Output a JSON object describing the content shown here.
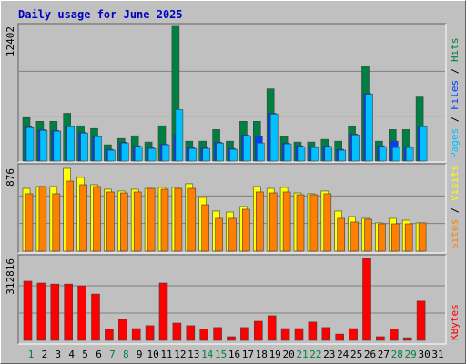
{
  "title": "Daily usage for June 2025",
  "chart_data": [
    {
      "type": "bar",
      "ylim": [
        0,
        12402
      ],
      "yticks": [
        12402
      ],
      "series": [
        {
          "name": "Hits",
          "color": "#008040",
          "values": [
            4000,
            3660,
            3660,
            4400,
            3250,
            3000,
            1500,
            2080,
            2330,
            1750,
            3250,
            12402,
            1830,
            1830,
            2900,
            1830,
            3660,
            3660,
            6650,
            2250,
            1750,
            1750,
            2000,
            1830,
            3160,
            8740,
            1830,
            2900,
            2900,
            5900,
            null
          ]
        },
        {
          "name": "Files",
          "color": "#0040ff",
          "values": [
            3150,
            2900,
            2820,
            3240,
            2650,
            2330,
            1080,
            1740,
            1410,
            1240,
            1580,
            2410,
            1240,
            1240,
            1740,
            1160,
            2410,
            2250,
            4410,
            1660,
            1410,
            1330,
            1410,
            1080,
            2490,
            6240,
            1410,
            1830,
            1330,
            3240,
            null
          ]
        },
        {
          "name": "Pages",
          "color": "#00c0ff",
          "values": [
            3080,
            2830,
            2750,
            3160,
            2580,
            2250,
            1000,
            1660,
            1330,
            1160,
            1500,
            4740,
            1160,
            1160,
            1660,
            1080,
            2330,
            1660,
            4330,
            1580,
            1330,
            1250,
            1330,
            1000,
            2410,
            6160,
            1330,
            1250,
            1250,
            3160,
            null
          ]
        }
      ]
    },
    {
      "type": "bar",
      "ylim": [
        0,
        876
      ],
      "yticks": [
        876
      ],
      "series": [
        {
          "name": "Visits",
          "color": "#ffff00",
          "values": [
            664,
            684,
            684,
            876,
            780,
            703,
            655,
            636,
            655,
            664,
            674,
            674,
            713,
            568,
            424,
            414,
            472,
            684,
            664,
            674,
            616,
            607,
            636,
            424,
            366,
            347,
            299,
            347,
            327,
            299,
            null
          ]
        },
        {
          "name": "Sites",
          "color": "#ff8000",
          "values": [
            607,
            684,
            607,
            741,
            703,
            684,
            626,
            616,
            626,
            664,
            655,
            664,
            664,
            491,
            347,
            347,
            443,
            626,
            616,
            626,
            597,
            597,
            607,
            347,
            308,
            337,
            289,
            289,
            289,
            299,
            null
          ]
        }
      ]
    },
    {
      "type": "bar",
      "ylim": [
        0,
        312816
      ],
      "yticks": [
        312816
      ],
      "categories": [
        "1",
        "2",
        "3",
        "4",
        "5",
        "6",
        "7",
        "8",
        "9",
        "10",
        "11",
        "12",
        "13",
        "14",
        "15",
        "16",
        "17",
        "18",
        "19",
        "20",
        "21",
        "22",
        "23",
        "24",
        "25",
        "26",
        "27",
        "28",
        "29",
        "30",
        "31"
      ],
      "category_colors": [
        "#008040",
        "#000000",
        "#000000",
        "#000000",
        "#000000",
        "#000000",
        "#008040",
        "#008040",
        "#000000",
        "#000000",
        "#000000",
        "#000000",
        "#000000",
        "#008040",
        "#008040",
        "#000000",
        "#000000",
        "#000000",
        "#000000",
        "#000000",
        "#008040",
        "#008040",
        "#000000",
        "#000000",
        "#000000",
        "#000000",
        "#000000",
        "#008040",
        "#008040",
        "#000000",
        "#000000"
      ],
      "series": [
        {
          "name": "KBytes",
          "color": "#ff0000",
          "values": [
            226000,
            219000,
            215000,
            215000,
            208000,
            177000,
            42000,
            80000,
            45000,
            56000,
            219000,
            66000,
            56000,
            42000,
            49000,
            14000,
            49000,
            73000,
            94000,
            45000,
            45000,
            70000,
            49000,
            24000,
            45000,
            312816,
            14000,
            42000,
            10000,
            150000,
            null
          ]
        }
      ]
    }
  ]
}
